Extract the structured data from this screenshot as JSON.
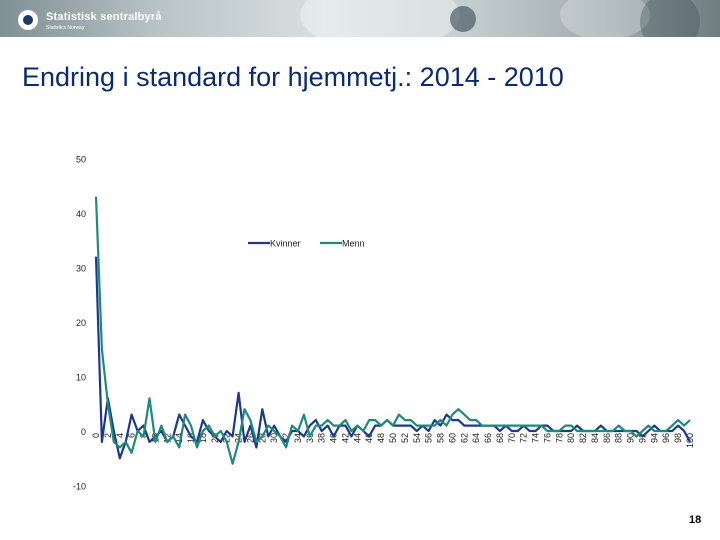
{
  "header": {
    "logo_name": "Statistisk sentralbyrå",
    "logo_sub": "Statistics Norway"
  },
  "title": "Endring i standard for hjemmetj.: 2014 - 2010",
  "page_number": "18",
  "colors": {
    "title": "#0b2a72",
    "kvinner": "#1b3a8a",
    "menn": "#1f8a78"
  },
  "chart_data": {
    "type": "line",
    "title": "Endring i standard for hjemmetj.: 2014 - 2010",
    "xlabel": "",
    "ylabel": "",
    "ylim": [
      -10,
      50
    ],
    "yticks": [
      -10,
      0,
      10,
      20,
      30,
      40,
      50
    ],
    "xticks": [
      0,
      2,
      4,
      6,
      8,
      10,
      12,
      14,
      16,
      18,
      20,
      22,
      24,
      26,
      28,
      30,
      32,
      34,
      36,
      38,
      40,
      42,
      44,
      46,
      48,
      50,
      52,
      54,
      56,
      58,
      60,
      62,
      64,
      66,
      68,
      70,
      72,
      74,
      76,
      78,
      80,
      82,
      84,
      86,
      88,
      90,
      92,
      94,
      96,
      98,
      100
    ],
    "x": [
      0,
      1,
      2,
      3,
      4,
      5,
      6,
      7,
      8,
      9,
      10,
      11,
      12,
      13,
      14,
      15,
      16,
      17,
      18,
      19,
      20,
      21,
      22,
      23,
      24,
      25,
      26,
      27,
      28,
      29,
      30,
      31,
      32,
      33,
      34,
      35,
      36,
      37,
      38,
      39,
      40,
      41,
      42,
      43,
      44,
      45,
      46,
      47,
      48,
      49,
      50,
      51,
      52,
      53,
      54,
      55,
      56,
      57,
      58,
      59,
      60,
      61,
      62,
      63,
      64,
      65,
      66,
      67,
      68,
      69,
      70,
      71,
      72,
      73,
      74,
      75,
      76,
      77,
      78,
      79,
      80,
      81,
      82,
      83,
      84,
      85,
      86,
      87,
      88,
      89,
      90,
      91,
      92,
      93,
      94,
      95,
      96,
      97,
      98,
      99,
      100
    ],
    "legend": "top-center",
    "grid": false,
    "series": [
      {
        "name": "Kvinner",
        "color": "#1b3a8a",
        "values": [
          32,
          -2,
          6,
          0,
          -5,
          -2,
          3,
          0,
          1,
          -2,
          -1,
          0,
          -2,
          -1,
          3,
          1,
          -1,
          -2,
          2,
          0,
          -1,
          -2,
          0,
          -1,
          7,
          -2,
          1,
          -3,
          4,
          -1,
          1,
          -1,
          -2,
          0,
          0,
          -1,
          1,
          2,
          0,
          1,
          -1,
          1,
          1,
          -1,
          1,
          0,
          -1,
          1,
          1,
          2,
          1,
          1,
          1,
          1,
          0,
          1,
          0,
          2,
          1,
          3,
          2,
          2,
          1,
          1,
          1,
          1,
          1,
          1,
          0,
          1,
          0,
          0,
          1,
          0,
          0,
          1,
          1,
          0,
          0,
          0,
          0,
          1,
          0,
          0,
          0,
          1,
          0,
          0,
          0,
          0,
          0,
          0,
          -1,
          0,
          1,
          0,
          0,
          0,
          1,
          0,
          -2
        ]
      },
      {
        "name": "Menn",
        "color": "#1f8a78",
        "values": [
          43,
          15,
          5,
          -2,
          -3,
          -2,
          -4,
          0,
          -1,
          6,
          -2,
          1,
          -2,
          -1,
          -3,
          3,
          1,
          -3,
          0,
          1,
          -1,
          0,
          -2,
          -6,
          -2,
          4,
          2,
          -2,
          -1,
          1,
          0,
          -1,
          -3,
          1,
          0,
          3,
          -1,
          1,
          1,
          2,
          1,
          1,
          2,
          0,
          1,
          0,
          2,
          2,
          1,
          2,
          1,
          3,
          2,
          2,
          1,
          1,
          1,
          1,
          2,
          1,
          3,
          4,
          3,
          2,
          2,
          1,
          1,
          1,
          1,
          1,
          1,
          1,
          1,
          1,
          1,
          1,
          0,
          0,
          0,
          1,
          1,
          0,
          0,
          0,
          0,
          0,
          0,
          0,
          1,
          0,
          0,
          -1,
          0,
          1,
          0,
          0,
          0,
          1,
          2,
          1,
          2
        ]
      }
    ]
  }
}
